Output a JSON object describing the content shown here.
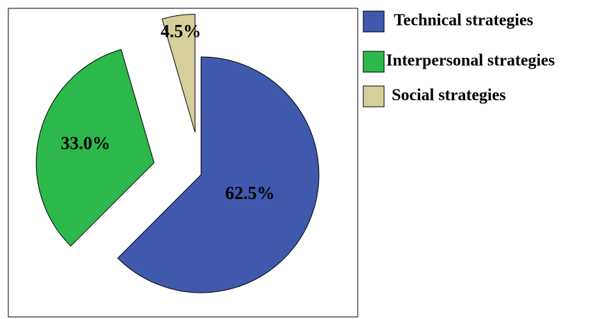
{
  "chart_data": {
    "type": "pie",
    "categories": [
      "Technical strategies",
      "Interpersonal strategies",
      "Social strategies"
    ],
    "values": [
      62.5,
      33.0,
      4.5
    ],
    "value_labels": [
      "62.5%",
      "33.0%",
      "4.5%"
    ],
    "colors": [
      "#3f59ad",
      "#2db84b",
      "#d6cf9c"
    ]
  }
}
